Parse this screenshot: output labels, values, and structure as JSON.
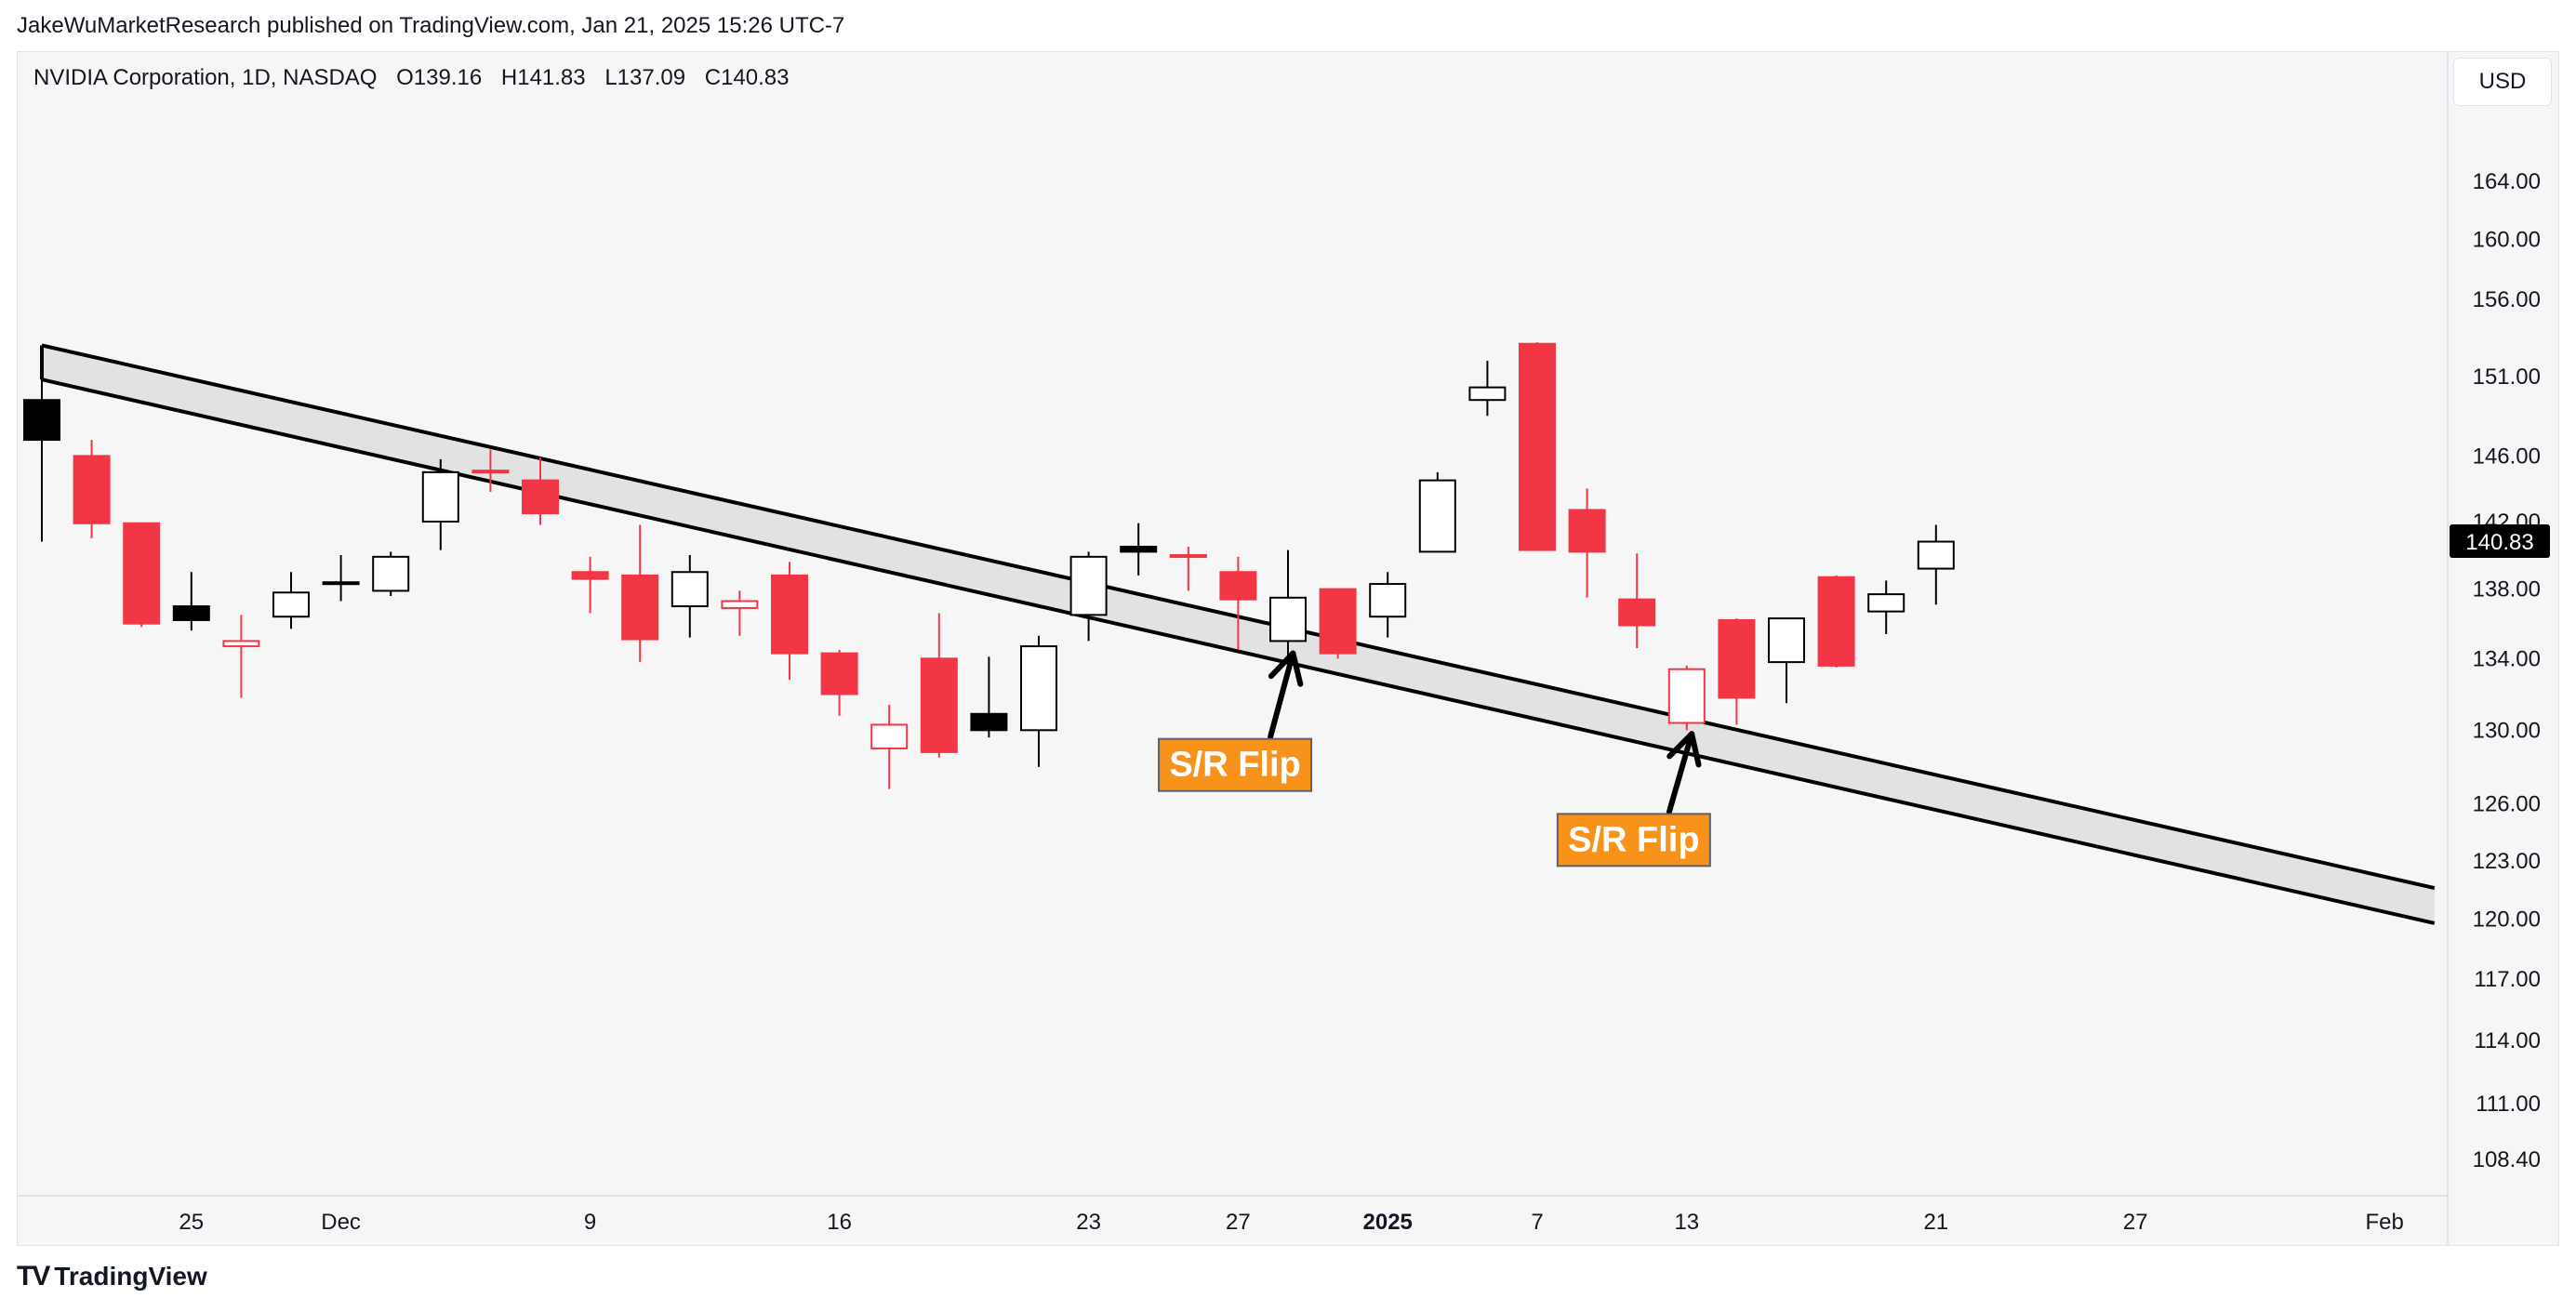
{
  "header": {
    "published": "JakeWuMarketResearch published on TradingView.com, Jan 21, 2025 15:26 UTC-7"
  },
  "symbol": {
    "name": "NVIDIA Corporation, 1D, NASDAQ",
    "open": "O139.16",
    "high": "H141.83",
    "low": "L137.09",
    "close": "C140.83"
  },
  "currency": "USD",
  "footer": {
    "brand": "TradingView",
    "logo_text": "TV"
  },
  "colors": {
    "up": "#ffffff",
    "up_border": "#000000",
    "down": "#f23645",
    "band_fill": "#e2e2e3",
    "label_bg": "#f7931a"
  },
  "chart_data": {
    "type": "candlestick",
    "title": "NVIDIA Corporation, 1D, NASDAQ",
    "scale": "log",
    "y_ticks": [
      "164.00",
      "160.00",
      "156.00",
      "151.00",
      "146.00",
      "142.00",
      "138.00",
      "134.00",
      "130.00",
      "126.00",
      "123.00",
      "120.00",
      "117.00",
      "114.00",
      "111.00",
      "108.40"
    ],
    "x_labels": [
      {
        "label": "25",
        "bar": 3
      },
      {
        "label": "Dec",
        "bar": 6
      },
      {
        "label": "9",
        "bar": 11
      },
      {
        "label": "16",
        "bar": 16
      },
      {
        "label": "23",
        "bar": 21
      },
      {
        "label": "27",
        "bar": 24
      },
      {
        "label": "2025",
        "bar": 27,
        "bold": true
      },
      {
        "label": "7",
        "bar": 30
      },
      {
        "label": "13",
        "bar": 33
      },
      {
        "label": "21",
        "bar": 38
      },
      {
        "label": "27",
        "bar": 42
      },
      {
        "label": "Feb",
        "bar": 47
      }
    ],
    "last_price": "140.83",
    "candles": [
      {
        "o": 149.5,
        "h": 152.9,
        "l": 140.8,
        "c": 147.0,
        "color": "black"
      },
      {
        "o": 146.0,
        "h": 147.0,
        "l": 141.0,
        "c": 141.9,
        "color": "red"
      },
      {
        "o": 141.9,
        "h": 141.9,
        "l": 135.8,
        "c": 136.0,
        "color": "red"
      },
      {
        "o": 137.0,
        "h": 139.0,
        "l": 135.6,
        "c": 136.2,
        "color": "black"
      },
      {
        "o": 135.0,
        "h": 136.5,
        "l": 131.8,
        "c": 134.7,
        "color": "red_hollow"
      },
      {
        "o": 136.4,
        "h": 139.0,
        "l": 135.7,
        "c": 137.8,
        "color": "white"
      },
      {
        "o": 138.3,
        "h": 140.0,
        "l": 137.3,
        "c": 138.4,
        "color": "black"
      },
      {
        "o": 137.9,
        "h": 140.2,
        "l": 137.6,
        "c": 139.9,
        "color": "white"
      },
      {
        "o": 142.0,
        "h": 145.8,
        "l": 140.3,
        "c": 145.0,
        "color": "white"
      },
      {
        "o": 145.0,
        "h": 146.4,
        "l": 143.8,
        "c": 145.1,
        "color": "red_hollow"
      },
      {
        "o": 144.5,
        "h": 145.9,
        "l": 141.8,
        "c": 142.5,
        "color": "red"
      },
      {
        "o": 139.0,
        "h": 139.9,
        "l": 136.6,
        "c": 138.6,
        "color": "red"
      },
      {
        "o": 138.8,
        "h": 141.8,
        "l": 133.8,
        "c": 135.1,
        "color": "red"
      },
      {
        "o": 137.0,
        "h": 140.0,
        "l": 135.2,
        "c": 139.0,
        "color": "white"
      },
      {
        "o": 137.3,
        "h": 137.9,
        "l": 135.3,
        "c": 136.9,
        "color": "red_hollow"
      },
      {
        "o": 138.8,
        "h": 139.6,
        "l": 132.8,
        "c": 134.3,
        "color": "red"
      },
      {
        "o": 134.3,
        "h": 134.5,
        "l": 130.8,
        "c": 132.0,
        "color": "red"
      },
      {
        "o": 130.3,
        "h": 131.4,
        "l": 126.8,
        "c": 129.0,
        "color": "red_hollow"
      },
      {
        "o": 134.0,
        "h": 136.6,
        "l": 128.5,
        "c": 128.8,
        "color": "red"
      },
      {
        "o": 130.9,
        "h": 134.1,
        "l": 129.6,
        "c": 130.0,
        "color": "black"
      },
      {
        "o": 130.0,
        "h": 135.3,
        "l": 128.0,
        "c": 134.7,
        "color": "white"
      },
      {
        "o": 136.5,
        "h": 140.2,
        "l": 135.0,
        "c": 139.9,
        "color": "white"
      },
      {
        "o": 140.5,
        "h": 141.9,
        "l": 138.8,
        "c": 140.2,
        "color": "black"
      },
      {
        "o": 140.0,
        "h": 140.5,
        "l": 137.9,
        "c": 139.9,
        "color": "red_hollow"
      },
      {
        "o": 139.0,
        "h": 139.9,
        "l": 134.5,
        "c": 137.4,
        "color": "red"
      },
      {
        "o": 135.0,
        "h": 140.3,
        "l": 134.2,
        "c": 137.5,
        "color": "white"
      },
      {
        "o": 138.0,
        "h": 138.0,
        "l": 134.0,
        "c": 134.3,
        "color": "red"
      },
      {
        "o": 136.4,
        "h": 139.0,
        "l": 135.2,
        "c": 138.3,
        "color": "white"
      },
      {
        "o": 140.2,
        "h": 145.0,
        "l": 140.2,
        "c": 144.5,
        "color": "white"
      },
      {
        "o": 149.5,
        "h": 152.0,
        "l": 148.5,
        "c": 150.3,
        "color": "white"
      },
      {
        "o": 153.1,
        "h": 153.2,
        "l": 140.3,
        "c": 140.3,
        "color": "red"
      },
      {
        "o": 142.7,
        "h": 144.0,
        "l": 137.5,
        "c": 140.2,
        "color": "red"
      },
      {
        "o": 137.4,
        "h": 140.1,
        "l": 134.6,
        "c": 135.9,
        "color": "red"
      },
      {
        "o": 130.4,
        "h": 133.6,
        "l": 130.0,
        "c": 133.4,
        "color": "red_hollow"
      },
      {
        "o": 136.2,
        "h": 136.3,
        "l": 130.3,
        "c": 131.8,
        "color": "red"
      },
      {
        "o": 133.8,
        "h": 136.3,
        "l": 131.5,
        "c": 136.3,
        "color": "white"
      },
      {
        "o": 138.7,
        "h": 138.8,
        "l": 133.5,
        "c": 133.6,
        "color": "red"
      },
      {
        "o": 136.7,
        "h": 138.5,
        "l": 135.4,
        "c": 137.7,
        "color": "white"
      },
      {
        "o": 139.2,
        "h": 141.8,
        "l": 137.1,
        "c": 140.8,
        "color": "white"
      }
    ],
    "channel": {
      "upper": [
        {
          "bar": 0,
          "price": 153.0
        },
        {
          "bar": 48,
          "price": 121.6
        }
      ],
      "lower": [
        {
          "bar": 0,
          "price": 150.8
        },
        {
          "bar": 48,
          "price": 119.8
        }
      ]
    },
    "annotations": [
      {
        "text": "S/R Flip",
        "bar": 23.9,
        "price": 128.0,
        "arrow_to": {
          "bar": 25.1,
          "price": 134.3
        }
      },
      {
        "text": "S/R Flip",
        "bar": 31.9,
        "price": 124.0,
        "arrow_to": {
          "bar": 33.1,
          "price": 129.8
        }
      }
    ]
  }
}
